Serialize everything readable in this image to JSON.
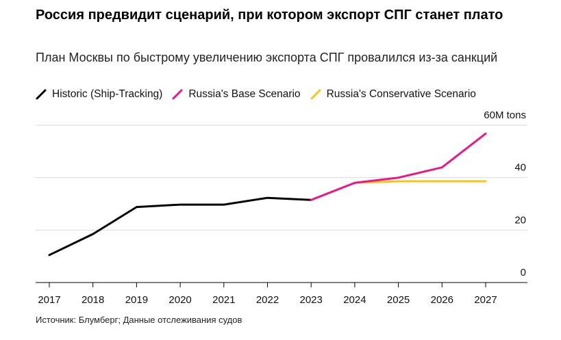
{
  "title": "Россия предвидит сценарий, при котором экспорт СПГ станет плато",
  "subtitle": "План Москвы по быстрому увеличению экспорта СПГ провалился из-за санкций",
  "source": "Источник: Блумберг; Данные отслеживания судов",
  "chart_data": {
    "type": "line",
    "title": "Россия предвидит сценарий, при котором экспорт СПГ станет плато",
    "subtitle": "План Москвы по быстрому увеличению экспорта СПГ провалился из-за санкций",
    "xlabel": "",
    "ylabel": "",
    "y_unit_label": "60M tons",
    "ylim": [
      0,
      60
    ],
    "y_ticks": [
      0,
      20,
      40,
      60
    ],
    "y_tick_labels": [
      "0",
      "20",
      "40",
      "60M tons"
    ],
    "x_ticks": [
      "2017",
      "2018",
      "2019",
      "2020",
      "2021",
      "2022",
      "2023",
      "2024",
      "2025",
      "2026",
      "2027"
    ],
    "grid": true,
    "legend_position": "top-left",
    "series": [
      {
        "name": "Historic (Ship-Tracking)",
        "color": "#000000",
        "x": [
          "2017",
          "2018",
          "2019",
          "2020",
          "2021",
          "2022",
          "2023"
        ],
        "values": [
          10.5,
          18.5,
          28.8,
          29.7,
          29.7,
          32.3,
          31.5
        ]
      },
      {
        "name": "Russia's Conservative Scenario",
        "color": "#F5C518",
        "x": [
          "2024",
          "2025",
          "2026",
          "2027"
        ],
        "values": [
          38.0,
          38.6,
          38.6,
          38.6
        ]
      },
      {
        "name": "Russia's Base Scenario",
        "color": "#E8178A",
        "x": [
          "2023",
          "2024",
          "2025",
          "2026",
          "2027"
        ],
        "values": [
          31.5,
          38.0,
          40.0,
          43.9,
          56.8
        ]
      }
    ]
  }
}
